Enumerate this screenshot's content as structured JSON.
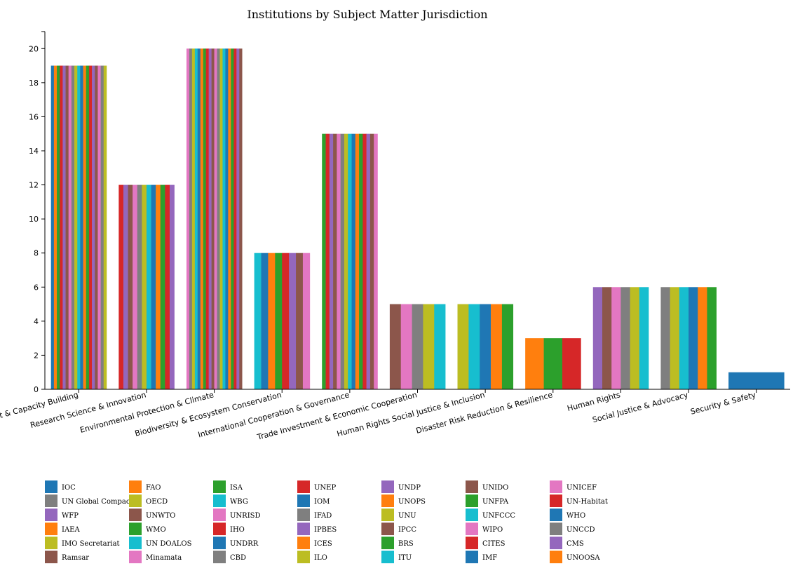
{
  "chart_data": {
    "type": "bar",
    "title": "Institutions by Subject Matter Jurisdiction",
    "xlabel": "",
    "ylabel": "",
    "ylim": [
      0,
      21
    ],
    "yticks": [
      0,
      2,
      4,
      6,
      8,
      10,
      12,
      14,
      16,
      18,
      20
    ],
    "grid": false,
    "legend_position": "bottom",
    "categories": [
      "Sustainable Development & Capacity Building",
      "Research Science & Innovation",
      "Environmental Protection & Climate",
      "Biodiversity & Ecosystem Conservation",
      "International Cooperation & Governance",
      "Trade Investment & Economic Cooperation",
      "Human Rights Social Justice & Inclusion",
      "Disaster Risk Reduction & Resilience",
      "Human Rights",
      "Social Justice & Advocacy",
      "Security & Safety"
    ],
    "values": [
      19,
      12,
      20,
      8,
      15,
      5,
      5,
      3,
      6,
      6,
      1
    ],
    "segment_counts": [
      19,
      12,
      20,
      8,
      15,
      5,
      5,
      3,
      6,
      6,
      1
    ],
    "palette": [
      "#1f77b4",
      "#ff7f0e",
      "#2ca02c",
      "#d62728",
      "#9467bd",
      "#8c564b",
      "#e377c2",
      "#7f7f7f",
      "#bcbd22",
      "#17becf"
    ],
    "legend": [
      {
        "name": "IOC",
        "color": "#1f77b4"
      },
      {
        "name": "UN Global Compact",
        "color": "#7f7f7f"
      },
      {
        "name": "WFP",
        "color": "#9467bd"
      },
      {
        "name": "IAEA",
        "color": "#ff7f0e"
      },
      {
        "name": "IMO Secretariat",
        "color": "#bcbd22"
      },
      {
        "name": "Ramsar",
        "color": "#8c564b"
      },
      {
        "name": "FAO",
        "color": "#ff7f0e"
      },
      {
        "name": "OECD",
        "color": "#bcbd22"
      },
      {
        "name": "UNWTO",
        "color": "#8c564b"
      },
      {
        "name": "WMO",
        "color": "#2ca02c"
      },
      {
        "name": "UN DOALOS",
        "color": "#17becf"
      },
      {
        "name": "Minamata",
        "color": "#e377c2"
      },
      {
        "name": "ISA",
        "color": "#2ca02c"
      },
      {
        "name": "WBG",
        "color": "#17becf"
      },
      {
        "name": "UNRISD",
        "color": "#e377c2"
      },
      {
        "name": "IHO",
        "color": "#d62728"
      },
      {
        "name": "UNDRR",
        "color": "#1f77b4"
      },
      {
        "name": "CBD",
        "color": "#7f7f7f"
      },
      {
        "name": "UNEP",
        "color": "#d62728"
      },
      {
        "name": "IOM",
        "color": "#1f77b4"
      },
      {
        "name": "IFAD",
        "color": "#7f7f7f"
      },
      {
        "name": "IPBES",
        "color": "#9467bd"
      },
      {
        "name": "ICES",
        "color": "#ff7f0e"
      },
      {
        "name": "ILO",
        "color": "#bcbd22"
      },
      {
        "name": "UNDP",
        "color": "#9467bd"
      },
      {
        "name": "UNOPS",
        "color": "#ff7f0e"
      },
      {
        "name": "UNU",
        "color": "#bcbd22"
      },
      {
        "name": "IPCC",
        "color": "#8c564b"
      },
      {
        "name": "BRS",
        "color": "#2ca02c"
      },
      {
        "name": "ITU",
        "color": "#17becf"
      },
      {
        "name": "UNIDO",
        "color": "#8c564b"
      },
      {
        "name": "UNFPA",
        "color": "#2ca02c"
      },
      {
        "name": "UNFCCC",
        "color": "#17becf"
      },
      {
        "name": "WIPO",
        "color": "#e377c2"
      },
      {
        "name": "CITES",
        "color": "#d62728"
      },
      {
        "name": "IMF",
        "color": "#1f77b4"
      },
      {
        "name": "UNICEF",
        "color": "#e377c2"
      },
      {
        "name": "UN-Habitat",
        "color": "#d62728"
      },
      {
        "name": "WHO",
        "color": "#1f77b4"
      },
      {
        "name": "UNCCD",
        "color": "#7f7f7f"
      },
      {
        "name": "CMS",
        "color": "#9467bd"
      },
      {
        "name": "UNOOSA",
        "color": "#ff7f0e"
      }
    ]
  }
}
